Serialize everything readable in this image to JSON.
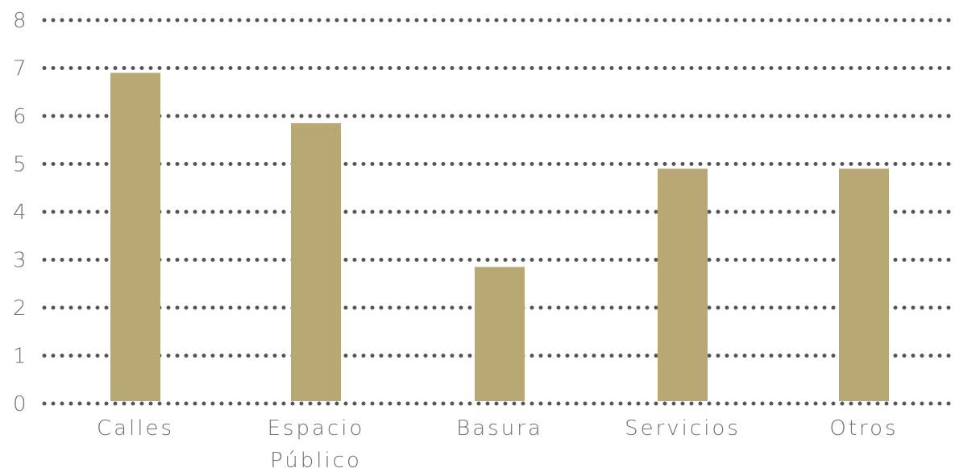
{
  "chart_data": {
    "type": "bar",
    "title": "",
    "xlabel": "",
    "ylabel": "",
    "categories": [
      [
        "Calles"
      ],
      [
        "Espacio",
        "Público"
      ],
      [
        "Basura"
      ],
      [
        "Servicios"
      ],
      [
        "Otros"
      ]
    ],
    "values": [
      6.9,
      5.85,
      2.85,
      4.9,
      4.9
    ],
    "ylim": [
      0,
      8
    ],
    "yticks": [
      "0",
      "1",
      "2",
      "3",
      "4",
      "5",
      "6",
      "7",
      "8"
    ],
    "grid": true,
    "grid_style": "dotted",
    "legend": "none",
    "colors": {
      "bar": "#b8a874",
      "grid": "#555555",
      "text": "#707070"
    }
  }
}
